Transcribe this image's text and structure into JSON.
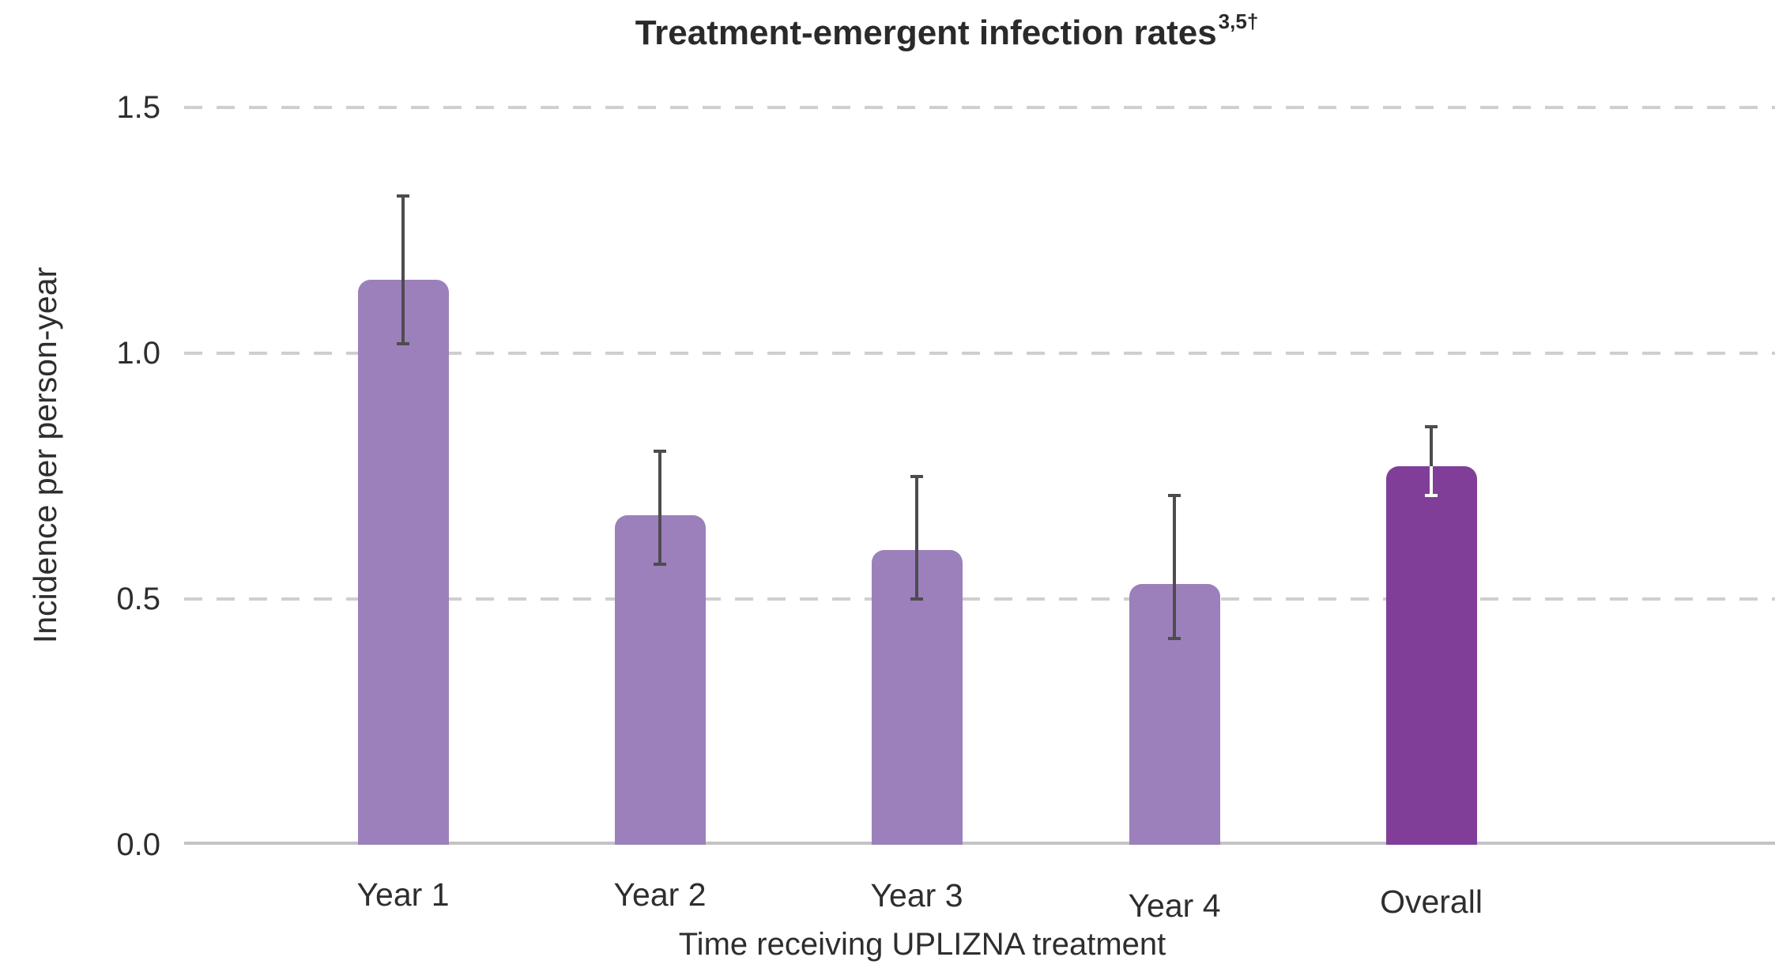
{
  "chart_data": {
    "type": "bar",
    "title": "Treatment-emergent infection rates",
    "title_superscript": "3,5†",
    "ylabel": "Incidence per person-year",
    "xlabel": "Time receiving UPLIZNA treatment",
    "categories": [
      "Year 1",
      "Year 2",
      "Year 3",
      "Year 4",
      "Overall"
    ],
    "values": [
      1.15,
      0.67,
      0.6,
      0.53,
      0.77
    ],
    "error_low": [
      1.02,
      0.57,
      0.5,
      0.42,
      0.71
    ],
    "error_high": [
      1.32,
      0.8,
      0.75,
      0.71,
      0.85
    ],
    "emphasized": [
      false,
      false,
      false,
      false,
      true
    ],
    "ytick_labels": [
      "0.0",
      "0.5",
      "1.0",
      "1.5"
    ],
    "ytick_values": [
      0,
      0.5,
      1,
      1.5
    ],
    "ylim": [
      0,
      1.5
    ],
    "grid": "horizontal-dashed",
    "legend": "none",
    "colors": {
      "bar": "#9C80BB",
      "bar_emphasis": "#803E98",
      "error_bar": "#4F4B50",
      "error_bar_inside_emphasis": "#FFFFFF",
      "gridline": "#CFCFCF",
      "axis_line": "#C3C3C3",
      "text": "#2E2E2E"
    }
  }
}
